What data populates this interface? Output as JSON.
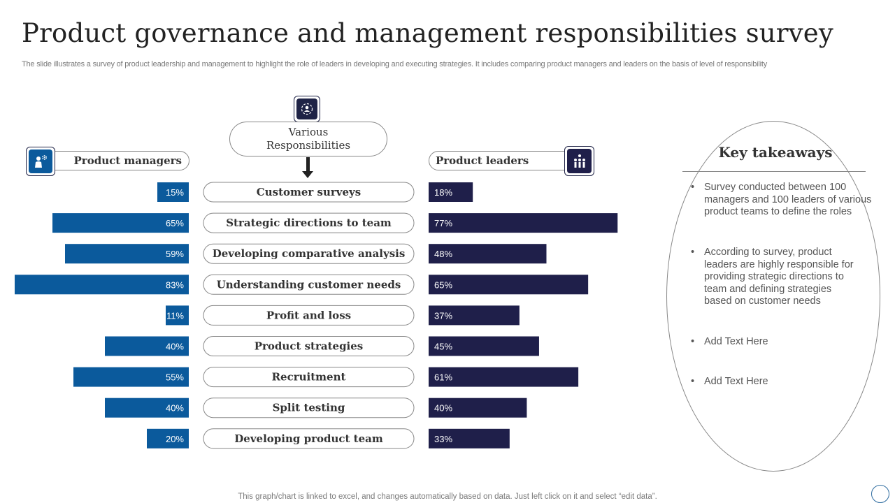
{
  "title": "Product governance and management responsibilities survey",
  "subtitle": "The slide illustrates a survey of product leadership and management to highlight the role of leaders in developing and executing strategies. It includes comparing product managers and leaders on the basis of level of responsibility",
  "center_header": {
    "line1": "Various",
    "line2": "Responsibilities",
    "icon": "responsibilities-icon"
  },
  "left_header": {
    "label": "Product managers",
    "icon": "manager-gear-icon"
  },
  "right_header": {
    "label": "Product leaders",
    "icon": "team-icon"
  },
  "colors": {
    "managers": "#0b5a9c",
    "leaders": "#1f1f4a"
  },
  "chart_data": {
    "type": "bar",
    "orientation": "horizontal-butterfly",
    "categories": [
      "Customer surveys",
      "Strategic directions to team",
      "Developing comparative analysis",
      "Understanding customer needs",
      "Profit and loss",
      "Product strategies",
      "Recruitment",
      "Split testing",
      "Developing product team"
    ],
    "series": [
      {
        "name": "Product managers",
        "values": [
          15,
          65,
          59,
          83,
          11,
          40,
          55,
          40,
          20
        ],
        "labels": [
          "15%",
          "65%",
          "59%",
          "83%",
          "11%",
          "40%",
          "55%",
          "40%",
          "20%"
        ]
      },
      {
        "name": "Product leaders",
        "values": [
          18,
          77,
          48,
          65,
          37,
          45,
          61,
          40,
          33
        ],
        "labels": [
          "18%",
          "77%",
          "48%",
          "65%",
          "37%",
          "45%",
          "61%",
          "40%",
          "33%"
        ]
      }
    ],
    "unit": "%"
  },
  "key_takeaways": {
    "title": "Key takeaways",
    "bullet": "•",
    "items": [
      "Survey conducted between 100 managers and 100 leaders of various product teams to define the roles",
      "According to survey, product leaders are highly responsible for providing strategic directions to team and defining strategies based on customer needs",
      "Add Text Here",
      "Add Text Here"
    ]
  },
  "footer": "This graph/chart is linked to excel,  and changes automatically based on data. Just left click on it and select “edit data”."
}
